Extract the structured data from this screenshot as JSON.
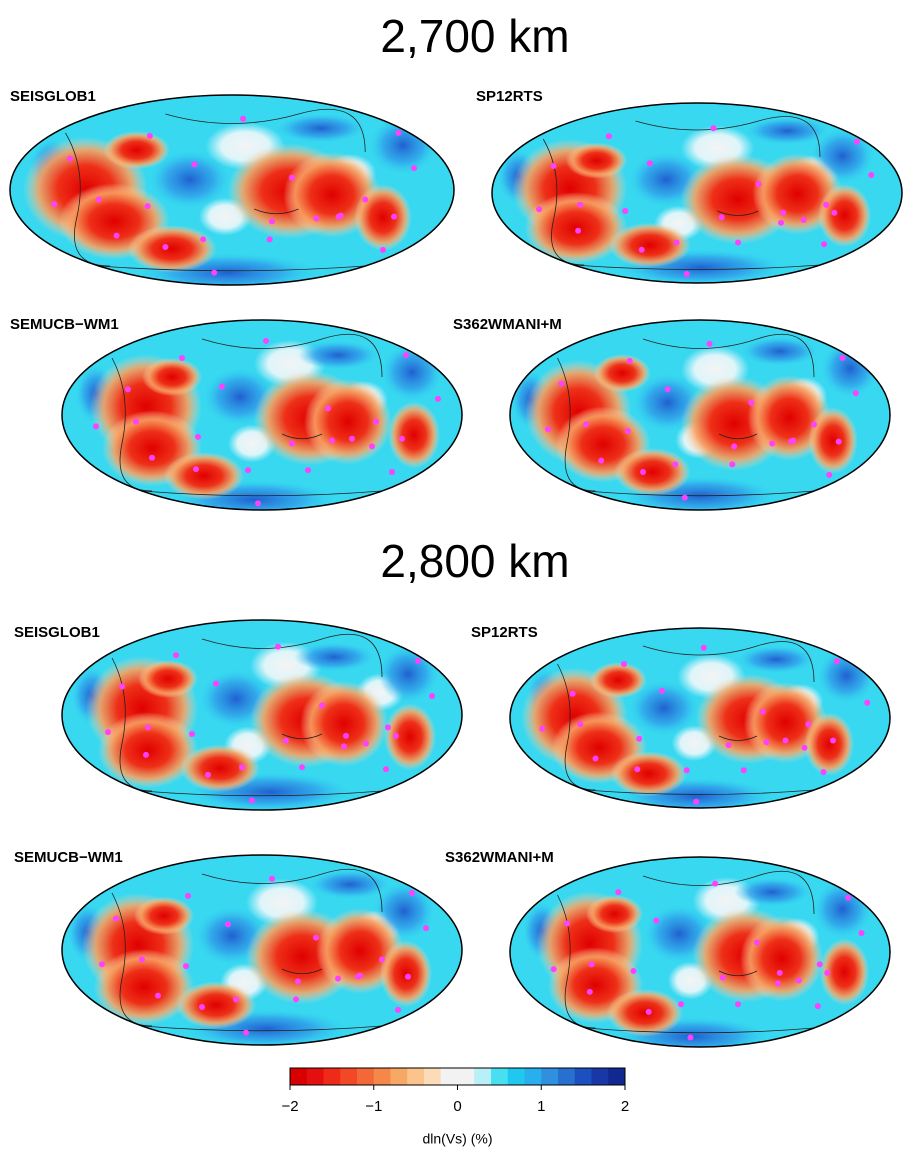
{
  "figure": {
    "sections": [
      {
        "title": "2,700 km",
        "panels": [
          "SEISGLOB1",
          "SP12RTS",
          "SEMUCB−WM1",
          "S362WMANI+M"
        ]
      },
      {
        "title": "2,800 km",
        "panels": [
          "SEISGLOB1",
          "SP12RTS",
          "SEMUCB−WM1",
          "S362WMANI+M"
        ]
      }
    ],
    "colorbar": {
      "lim": [
        -2,
        2
      ],
      "ticks": [
        {
          "value": -2,
          "label": "−2"
        },
        {
          "value": -1,
          "label": "−1"
        },
        0,
        1,
        2
      ],
      "label": "dln(Vs) (%)",
      "colors": [
        "#d80000",
        "#e41010",
        "#ee2a18",
        "#f34828",
        "#f46838",
        "#f58848",
        "#f7a866",
        "#fbc48c",
        "#fcdcb8",
        "#f2f2f2",
        "#f2f2f2",
        "#b8f0f8",
        "#48e0f0",
        "#20c8f0",
        "#28b0ee",
        "#3090e0",
        "#2870d0",
        "#1c50c0",
        "#1838a8",
        "#102890"
      ]
    }
  }
}
